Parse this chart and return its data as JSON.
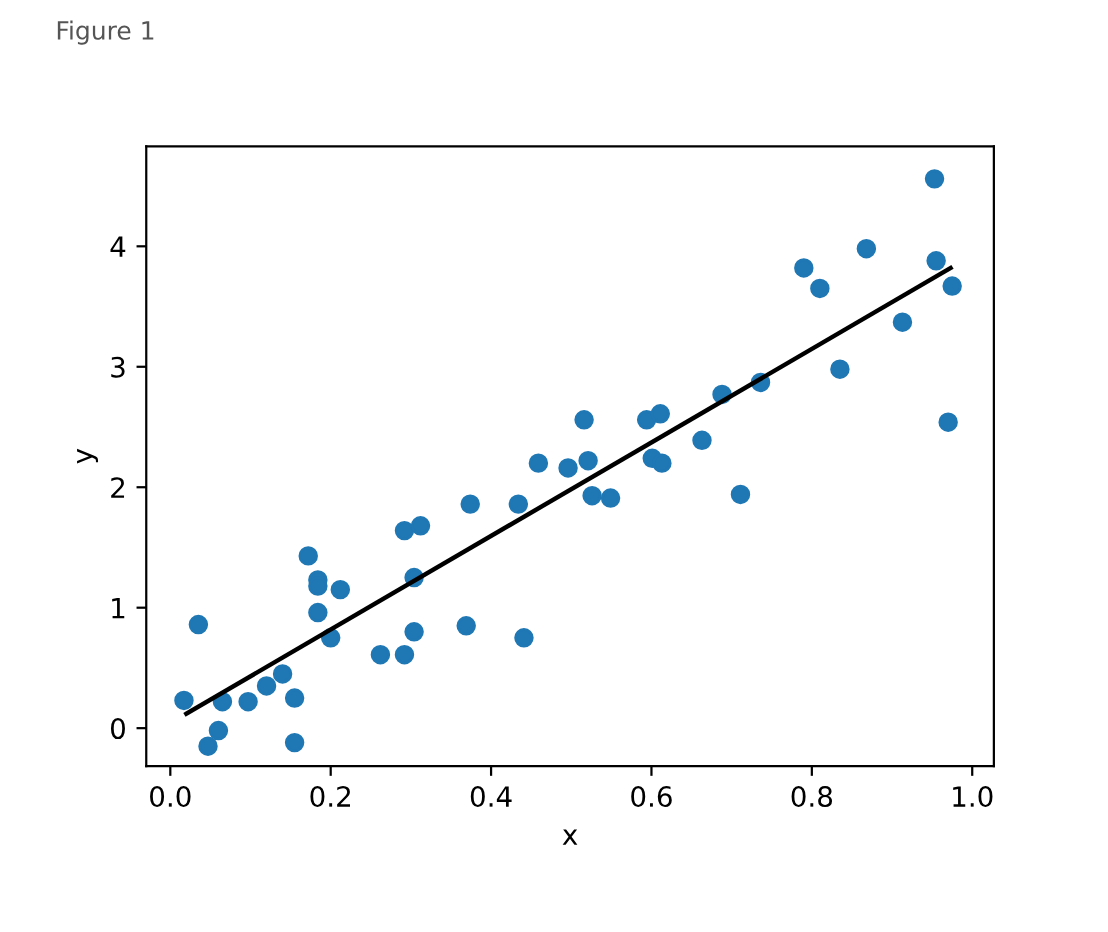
{
  "chart_data": {
    "type": "scatter",
    "xlabel": "x",
    "ylabel": "y",
    "annotations": [
      "Figure 1"
    ],
    "xlim": [
      -0.03,
      1.027
    ],
    "ylim": [
      -0.315,
      4.83
    ],
    "xticks": [
      {
        "value": 0.0,
        "label": "0.0"
      },
      0.2,
      0.4,
      0.6,
      0.8,
      {
        "value": 1.0,
        "label": "1.0"
      }
    ],
    "yticks": [
      0,
      1,
      2,
      3,
      4
    ],
    "grid": false,
    "series": [
      {
        "type": "scatter",
        "marker": "circle",
        "color": "#1f77b4",
        "x": [
          0.017,
          0.035,
          0.047,
          0.06,
          0.065,
          0.097,
          0.12,
          0.14,
          0.155,
          0.155,
          0.172,
          0.184,
          0.184,
          0.184,
          0.2,
          0.212,
          0.262,
          0.292,
          0.292,
          0.304,
          0.304,
          0.312,
          0.369,
          0.374,
          0.434,
          0.441,
          0.459,
          0.496,
          0.516,
          0.521,
          0.526,
          0.549,
          0.594,
          0.601,
          0.611,
          0.613,
          0.663,
          0.688,
          0.711,
          0.736,
          0.79,
          0.81,
          0.835,
          0.868,
          0.913,
          0.953,
          0.955,
          0.97,
          0.975
        ],
        "values": [
          0.23,
          0.86,
          -0.15,
          -0.02,
          0.22,
          0.22,
          0.35,
          0.45,
          0.25,
          -0.12,
          1.43,
          1.23,
          1.18,
          0.96,
          0.75,
          1.15,
          0.61,
          0.61,
          1.64,
          0.8,
          1.25,
          1.68,
          0.85,
          1.86,
          1.86,
          0.75,
          2.2,
          2.16,
          2.56,
          2.22,
          1.93,
          1.91,
          2.56,
          2.24,
          2.61,
          2.2,
          2.39,
          2.77,
          1.94,
          2.87,
          3.82,
          3.65,
          2.98,
          3.98,
          3.37,
          4.56,
          3.88,
          2.54,
          3.67
        ]
      },
      {
        "type": "line",
        "color": "#000000",
        "x": [
          0.02,
          0.973
        ],
        "values": [
          0.12,
          3.82
        ]
      }
    ]
  }
}
